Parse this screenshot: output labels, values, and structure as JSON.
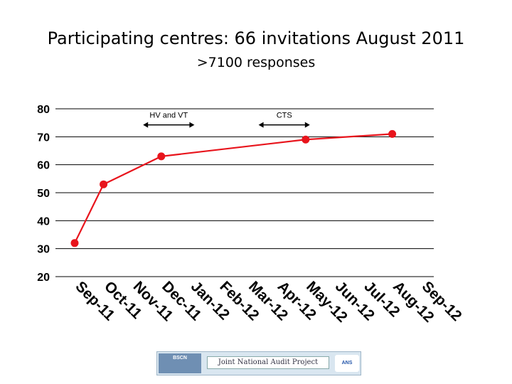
{
  "slide": {
    "title": "Participating centres:  66 invitations August 2011",
    "subtitle": ">7100 responses"
  },
  "logos": {
    "left": "BSCN",
    "middle": "Joint National Audit Project",
    "right": "ANS"
  },
  "chart_data": {
    "type": "line",
    "categories": [
      "Sep-11",
      "Oct-11",
      "Nov-11",
      "Dec-11",
      "Jan-12",
      "Feb-12",
      "Mar-12",
      "Apr-12",
      "May-12",
      "Jun-12",
      "Jul-12",
      "Aug-12",
      "Sep-12"
    ],
    "series": [
      {
        "color": "#e8141c",
        "points": [
          {
            "x": "Sep-11",
            "y": 32
          },
          {
            "x": "Oct-11",
            "y": 53
          },
          {
            "x": "Dec-11",
            "y": 63
          },
          {
            "x": "May-12",
            "y": 69
          },
          {
            "x": "Aug-12",
            "y": 71
          }
        ]
      }
    ],
    "yticks": [
      20,
      30,
      40,
      50,
      60,
      70,
      80
    ],
    "ylim": [
      20,
      80
    ],
    "grid": true,
    "annotations": [
      {
        "text": "HV and VT",
        "from": "Nov-11",
        "to": "Jan-12",
        "y": 75
      },
      {
        "text": "CTS",
        "from": "Mar-12",
        "to": "May-12",
        "y": 75
      }
    ]
  }
}
